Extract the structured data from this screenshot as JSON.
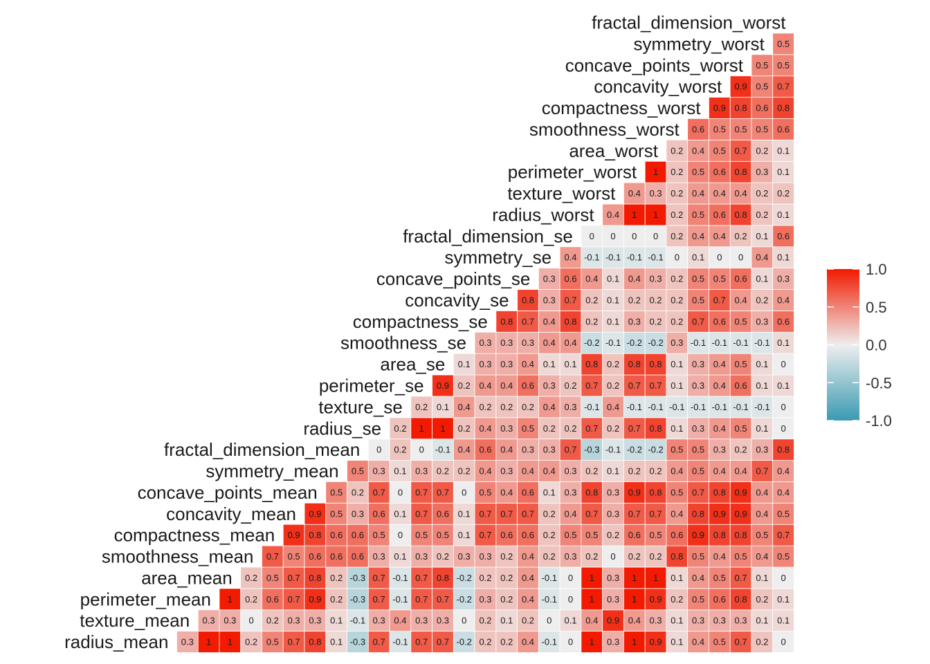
{
  "chart_data": {
    "type": "heatmap",
    "variables": [
      "radius_mean",
      "texture_mean",
      "perimeter_mean",
      "area_mean",
      "smoothness_mean",
      "compactness_mean",
      "concavity_mean",
      "concave_points_mean",
      "symmetry_mean",
      "fractal_dimension_mean",
      "radius_se",
      "texture_se",
      "perimeter_se",
      "area_se",
      "smoothness_se",
      "compactness_se",
      "concavity_se",
      "concave_points_se",
      "symmetry_se",
      "fractal_dimension_se",
      "radius_worst",
      "texture_worst",
      "perimeter_worst",
      "area_worst",
      "smoothness_worst",
      "compactness_worst",
      "concavity_worst",
      "concave_points_worst",
      "symmetry_worst",
      "fractal_dimension_worst"
    ],
    "rows": [
      {
        "name": "radius_mean",
        "values": [
          "0.3",
          "1",
          "1",
          "0.2",
          "0.5",
          "0.7",
          "0.8",
          "0.1",
          "-0.3",
          "0.7",
          "-0.1",
          "0.7",
          "0.7",
          "-0.2",
          "0.2",
          "0.2",
          "0.4",
          "-0.1",
          "0",
          "1",
          "0.3",
          "1",
          "0.9",
          "0.1",
          "0.4",
          "0.5",
          "0.7",
          "0.2",
          "0"
        ]
      },
      {
        "name": "texture_mean",
        "values": [
          "0.3",
          "0.3",
          "0",
          "0.2",
          "0.3",
          "0.3",
          "0.1",
          "-0.1",
          "0.3",
          "0.4",
          "0.3",
          "0.3",
          "0",
          "0.2",
          "0.1",
          "0.2",
          "0",
          "0.1",
          "0.4",
          "0.9",
          "0.4",
          "0.3",
          "0.1",
          "0.3",
          "0.3",
          "0.3",
          "0.1",
          "0.1"
        ]
      },
      {
        "name": "perimeter_mean",
        "values": [
          "1",
          "0.2",
          "0.6",
          "0.7",
          "0.9",
          "0.2",
          "-0.3",
          "0.7",
          "-0.1",
          "0.7",
          "0.7",
          "-0.2",
          "0.3",
          "0.2",
          "0.4",
          "-0.1",
          "0",
          "1",
          "0.3",
          "1",
          "0.9",
          "0.2",
          "0.5",
          "0.6",
          "0.8",
          "0.2",
          "0.1"
        ]
      },
      {
        "name": "area_mean",
        "values": [
          "0.2",
          "0.5",
          "0.7",
          "0.8",
          "0.2",
          "-0.3",
          "0.7",
          "-0.1",
          "0.7",
          "0.8",
          "-0.2",
          "0.2",
          "0.2",
          "0.4",
          "-0.1",
          "0",
          "1",
          "0.3",
          "1",
          "1",
          "0.1",
          "0.4",
          "0.5",
          "0.7",
          "0.1",
          "0"
        ]
      },
      {
        "name": "smoothness_mean",
        "values": [
          "0.7",
          "0.5",
          "0.6",
          "0.6",
          "0.6",
          "0.3",
          "0.1",
          "0.3",
          "0.2",
          "0.3",
          "0.3",
          "0.2",
          "0.4",
          "0.2",
          "0.3",
          "0.2",
          "0",
          "0.2",
          "0.2",
          "0.8",
          "0.5",
          "0.4",
          "0.5",
          "0.4",
          "0.5"
        ]
      },
      {
        "name": "compactness_mean",
        "values": [
          "0.9",
          "0.8",
          "0.6",
          "0.6",
          "0.5",
          "0",
          "0.5",
          "0.5",
          "0.1",
          "0.7",
          "0.6",
          "0.6",
          "0.2",
          "0.5",
          "0.5",
          "0.2",
          "0.6",
          "0.5",
          "0.6",
          "0.9",
          "0.8",
          "0.8",
          "0.5",
          "0.7"
        ]
      },
      {
        "name": "concavity_mean",
        "values": [
          "0.9",
          "0.5",
          "0.3",
          "0.6",
          "0.1",
          "0.7",
          "0.6",
          "0.1",
          "0.7",
          "0.7",
          "0.7",
          "0.2",
          "0.4",
          "0.7",
          "0.3",
          "0.7",
          "0.7",
          "0.4",
          "0.8",
          "0.9",
          "0.9",
          "0.4",
          "0.5"
        ]
      },
      {
        "name": "concave_points_mean",
        "values": [
          "0.5",
          "0.2",
          "0.7",
          "0",
          "0.7",
          "0.7",
          "0",
          "0.5",
          "0.4",
          "0.6",
          "0.1",
          "0.3",
          "0.8",
          "0.3",
          "0.9",
          "0.8",
          "0.5",
          "0.7",
          "0.8",
          "0.9",
          "0.4",
          "0.4"
        ]
      },
      {
        "name": "symmetry_mean",
        "values": [
          "0.5",
          "0.3",
          "0.1",
          "0.3",
          "0.2",
          "0.2",
          "0.4",
          "0.3",
          "0.4",
          "0.4",
          "0.3",
          "0.2",
          "0.1",
          "0.2",
          "0.2",
          "0.4",
          "0.5",
          "0.4",
          "0.4",
          "0.7",
          "0.4"
        ]
      },
      {
        "name": "fractal_dimension_mean",
        "values": [
          "0",
          "0.2",
          "0",
          "-0.1",
          "0.4",
          "0.6",
          "0.4",
          "0.3",
          "0.3",
          "0.7",
          "-0.3",
          "-0.1",
          "-0.2",
          "-0.2",
          "0.5",
          "0.5",
          "0.3",
          "0.2",
          "0.3",
          "0.8"
        ]
      },
      {
        "name": "radius_se",
        "values": [
          "0.2",
          "1",
          "1",
          "0.2",
          "0.4",
          "0.3",
          "0.5",
          "0.2",
          "0.2",
          "0.7",
          "0.2",
          "0.7",
          "0.8",
          "0.1",
          "0.3",
          "0.4",
          "0.5",
          "0.1",
          "0"
        ]
      },
      {
        "name": "texture_se",
        "values": [
          "0.2",
          "0.1",
          "0.4",
          "0.2",
          "0.2",
          "0.2",
          "0.4",
          "0.3",
          "-0.1",
          "0.4",
          "-0.1",
          "-0.1",
          "-0.1",
          "-0.1",
          "-0.1",
          "-0.1",
          "-0.1",
          "0"
        ]
      },
      {
        "name": "perimeter_se",
        "values": [
          "0.9",
          "0.2",
          "0.4",
          "0.4",
          "0.6",
          "0.3",
          "0.2",
          "0.7",
          "0.2",
          "0.7",
          "0.7",
          "0.1",
          "0.3",
          "0.4",
          "0.6",
          "0.1",
          "0.1"
        ]
      },
      {
        "name": "area_se",
        "values": [
          "0.1",
          "0.3",
          "0.3",
          "0.4",
          "0.1",
          "0.1",
          "0.8",
          "0.2",
          "0.8",
          "0.8",
          "0.1",
          "0.3",
          "0.4",
          "0.5",
          "0.1",
          "0"
        ]
      },
      {
        "name": "smoothness_se",
        "values": [
          "0.3",
          "0.3",
          "0.3",
          "0.4",
          "0.4",
          "-0.2",
          "-0.1",
          "-0.2",
          "-0.2",
          "0.3",
          "-0.1",
          "-0.1",
          "-0.1",
          "-0.1",
          "0.1"
        ]
      },
      {
        "name": "compactness_se",
        "values": [
          "0.8",
          "0.7",
          "0.4",
          "0.8",
          "0.2",
          "0.1",
          "0.3",
          "0.2",
          "0.2",
          "0.7",
          "0.6",
          "0.5",
          "0.3",
          "0.6"
        ]
      },
      {
        "name": "concavity_se",
        "values": [
          "0.8",
          "0.3",
          "0.7",
          "0.2",
          "0.1",
          "0.2",
          "0.2",
          "0.2",
          "0.5",
          "0.7",
          "0.4",
          "0.2",
          "0.4"
        ]
      },
      {
        "name": "concave_points_se",
        "values": [
          "0.3",
          "0.6",
          "0.4",
          "0.1",
          "0.4",
          "0.3",
          "0.2",
          "0.5",
          "0.5",
          "0.6",
          "0.1",
          "0.3"
        ]
      },
      {
        "name": "symmetry_se",
        "values": [
          "0.4",
          "-0.1",
          "-0.1",
          "-0.1",
          "-0.1",
          "0",
          "0.1",
          "0",
          "0",
          "0.4",
          "0.1"
        ]
      },
      {
        "name": "fractal_dimension_se",
        "values": [
          "0",
          "0",
          "0",
          "0",
          "0.2",
          "0.4",
          "0.4",
          "0.2",
          "0.1",
          "0.6"
        ]
      },
      {
        "name": "radius_worst",
        "values": [
          "0.4",
          "1",
          "1",
          "0.2",
          "0.5",
          "0.6",
          "0.8",
          "0.2",
          "0.1"
        ]
      },
      {
        "name": "texture_worst",
        "values": [
          "0.4",
          "0.3",
          "0.2",
          "0.4",
          "0.4",
          "0.4",
          "0.2",
          "0.2"
        ]
      },
      {
        "name": "perimeter_worst",
        "values": [
          "1",
          "0.2",
          "0.5",
          "0.6",
          "0.8",
          "0.3",
          "0.1"
        ]
      },
      {
        "name": "area_worst",
        "values": [
          "0.2",
          "0.4",
          "0.5",
          "0.7",
          "0.2",
          "0.1"
        ]
      },
      {
        "name": "smoothness_worst",
        "values": [
          "0.6",
          "0.5",
          "0.5",
          "0.5",
          "0.6"
        ]
      },
      {
        "name": "compactness_worst",
        "values": [
          "0.9",
          "0.8",
          "0.6",
          "0.8"
        ]
      },
      {
        "name": "concavity_worst",
        "values": [
          "0.9",
          "0.5",
          "0.7"
        ]
      },
      {
        "name": "concave_points_worst",
        "values": [
          "0.5",
          "0.5"
        ]
      },
      {
        "name": "symmetry_worst",
        "values": [
          "0.5"
        ]
      },
      {
        "name": "fractal_dimension_worst",
        "values": []
      }
    ],
    "legend": {
      "ticks": [
        "1.0",
        "0.5",
        "0.0",
        "-0.5",
        "-1.0"
      ],
      "range": [
        -1,
        1
      ],
      "placement": "right"
    },
    "colors": {
      "low": "#3A9AB2",
      "mid": "#EEEEEE",
      "high": "#F21A00"
    }
  }
}
